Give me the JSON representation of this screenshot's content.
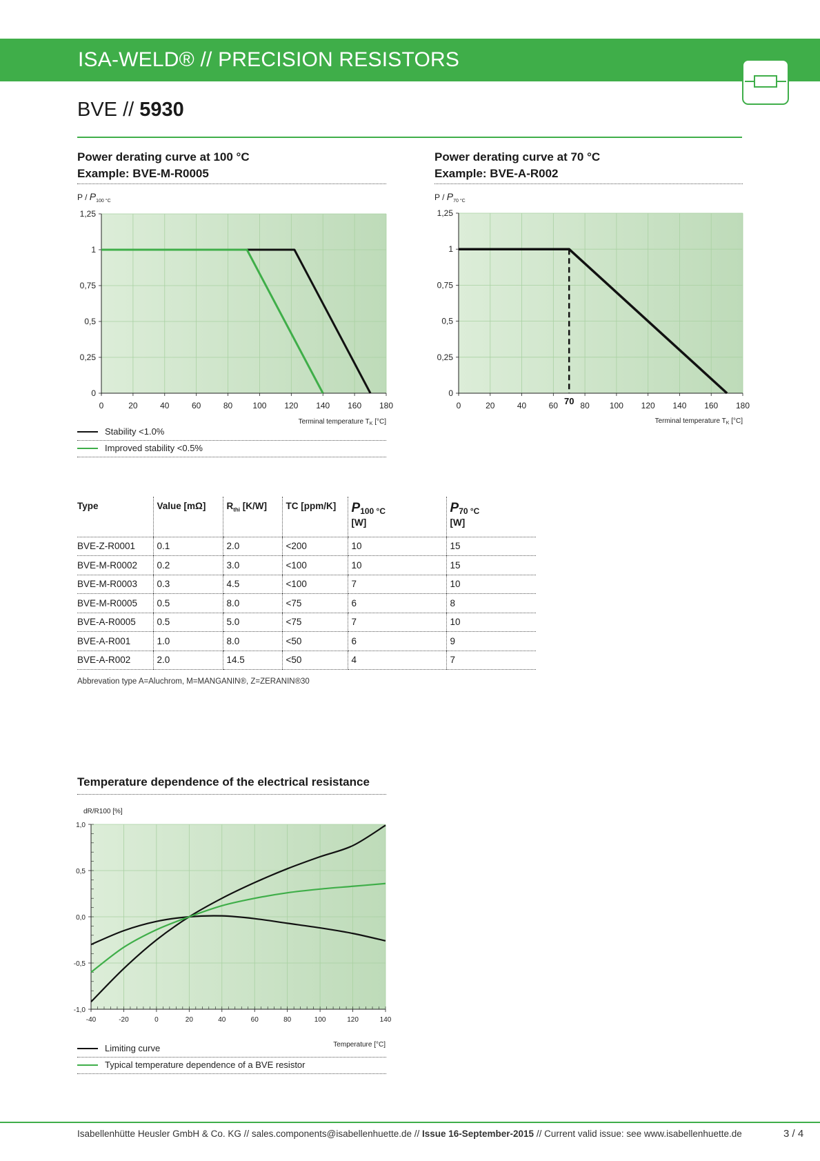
{
  "header": {
    "title": "ISA-WELD® // PRECISION RESISTORS",
    "badge_icon": "resistor-icon",
    "accent_color": "#3fae49"
  },
  "page": {
    "title_prefix": "BVE //",
    "title_number": "5930"
  },
  "chart1": {
    "title_line1": "Power derating curve at 100 °C",
    "title_line2": "Example: BVE-M-R0005",
    "ylabel_prefix": "P / ",
    "ylabel_var": "P",
    "ylabel_sub": "100 °C",
    "xlabel": "Terminal temperature T",
    "xlabel_sub": "K",
    "xlabel_unit": " [°C]",
    "legend": [
      {
        "label": "Stability <1.0%",
        "color": "#111111"
      },
      {
        "label": "Improved stability <0.5%",
        "color": "#3fae49"
      }
    ]
  },
  "chart2": {
    "title_line1": "Power derating curve at 70 °C",
    "title_line2": "Example: BVE-A-R002",
    "ylabel_prefix": "P / ",
    "ylabel_var": "P",
    "ylabel_sub": "70 °C",
    "xlabel": "Terminal temperature T",
    "xlabel_sub": "K",
    "xlabel_unit": " [°C]",
    "marker_label": "70"
  },
  "chart3": {
    "title": "Temperature dependence of the electrical resistance",
    "ylabel": "dR/R100 [%]",
    "xlabel": "Temperature [°C]",
    "legend": [
      {
        "label": "Limiting curve",
        "color": "#111111"
      },
      {
        "label": "Typical temperature dependence of a BVE resistor",
        "color": "#3fae49"
      }
    ]
  },
  "table": {
    "headers": {
      "type": "Type",
      "value": "Value [mΩ]",
      "rthi_main": "R",
      "rthi_sub": "thi",
      "rthi_unit": " [K/W]",
      "tc": "TC [ppm/K]",
      "p100_var": "P",
      "p100_sub": "100 °C",
      "p100_unit": "[W]",
      "p70_var": "P",
      "p70_sub": "70 °C",
      "p70_unit": "[W]"
    },
    "rows": [
      [
        "BVE-Z-R0001",
        "0.1",
        "2.0",
        "<200",
        "10",
        "15"
      ],
      [
        "BVE-M-R0002",
        "0.2",
        "3.0",
        "<100",
        "10",
        "15"
      ],
      [
        "BVE-M-R0003",
        "0.3",
        "4.5",
        "<100",
        "7",
        "10"
      ],
      [
        "BVE-M-R0005",
        "0.5",
        "8.0",
        "<75",
        "6",
        "8"
      ],
      [
        "BVE-A-R0005",
        "0.5",
        "5.0",
        "<75",
        "7",
        "10"
      ],
      [
        "BVE-A-R001",
        "1.0",
        "8.0",
        "<50",
        "6",
        "9"
      ],
      [
        "BVE-A-R002",
        "2.0",
        "14.5",
        "<50",
        "4",
        "7"
      ]
    ],
    "abbreviation": "Abbrevation type  A=Aluchrom, M=MANGANIN®, Z=ZERANIN®30"
  },
  "footer": {
    "company": "Isabellenhütte Heusler GmbH & Co. KG // sales.components@isabellenhuette.de // ",
    "issue": "Issue 16-September-2015",
    "current": " // Current valid issue: see www.isabellenhuette.de",
    "page_number": "3 / 4"
  },
  "chart_data": [
    {
      "type": "line",
      "title": "Power derating curve at 100 °C",
      "xlabel": "Terminal temperature TK [°C]",
      "ylabel": "P / P100 °C",
      "xlim": [
        0,
        180
      ],
      "ylim": [
        0,
        1.25
      ],
      "x_ticks": [
        "0",
        "20",
        "40",
        "60",
        "80",
        "100",
        "120",
        "140",
        "160",
        "180"
      ],
      "y_ticks": [
        "0",
        "0,25",
        "0,5",
        "0,75",
        "1",
        "1,25"
      ],
      "grid": true,
      "legend_position": "bottom",
      "series": [
        {
          "name": "Stability <1.0%",
          "color": "#111111",
          "x": [
            0,
            122,
            170
          ],
          "y": [
            1,
            1,
            0
          ]
        },
        {
          "name": "Improved stability <0.5%",
          "color": "#3fae49",
          "x": [
            0,
            92,
            140
          ],
          "y": [
            1,
            1,
            0
          ]
        }
      ]
    },
    {
      "type": "line",
      "title": "Power derating curve at 70 °C",
      "xlabel": "Terminal temperature TK [°C]",
      "ylabel": "P / P70 °C",
      "xlim": [
        0,
        180
      ],
      "ylim": [
        0,
        1.25
      ],
      "x_ticks": [
        "0",
        "20",
        "40",
        "60",
        "80",
        "100",
        "120",
        "140",
        "160",
        "180"
      ],
      "y_ticks": [
        "0",
        "0,25",
        "0,5",
        "0,75",
        "1",
        "1,25"
      ],
      "grid": true,
      "marker_x": 70,
      "series": [
        {
          "color": "#111111",
          "x": [
            0,
            70,
            170
          ],
          "y": [
            1,
            1,
            0
          ]
        }
      ]
    },
    {
      "type": "line",
      "title": "Temperature dependence of the electrical resistance",
      "xlabel": "Temperature [°C]",
      "ylabel": "dR/R100 [%]",
      "xlim": [
        -40,
        140
      ],
      "ylim": [
        -1.0,
        1.0
      ],
      "x_ticks": [
        "-40",
        "-20",
        "0",
        "20",
        "40",
        "60",
        "80",
        "100",
        "120",
        "140"
      ],
      "y_ticks": [
        "-1,0",
        "-0,5",
        "0,0",
        "0,5",
        "1,0"
      ],
      "grid": true,
      "legend_position": "bottom",
      "series": [
        {
          "name": "Limiting curve",
          "color": "#111111",
          "x": [
            -40,
            -20,
            0,
            20,
            40,
            60,
            80,
            100,
            120,
            140
          ],
          "y": [
            -0.92,
            -0.56,
            -0.25,
            0.0,
            0.2,
            0.37,
            0.52,
            0.65,
            0.77,
            0.99
          ]
        },
        {
          "name": "Limiting curve",
          "color": "#111111",
          "x": [
            -40,
            -20,
            0,
            20,
            40,
            60,
            80,
            100,
            120,
            140
          ],
          "y": [
            -0.3,
            -0.15,
            -0.05,
            0.0,
            0.01,
            -0.02,
            -0.07,
            -0.12,
            -0.18,
            -0.26
          ]
        },
        {
          "name": "Typical temperature dependence of a BVE resistor",
          "color": "#3fae49",
          "x": [
            -40,
            -20,
            0,
            20,
            40,
            60,
            80,
            100,
            120,
            140
          ],
          "y": [
            -0.6,
            -0.33,
            -0.14,
            0.0,
            0.12,
            0.2,
            0.26,
            0.3,
            0.33,
            0.36
          ]
        }
      ]
    }
  ]
}
